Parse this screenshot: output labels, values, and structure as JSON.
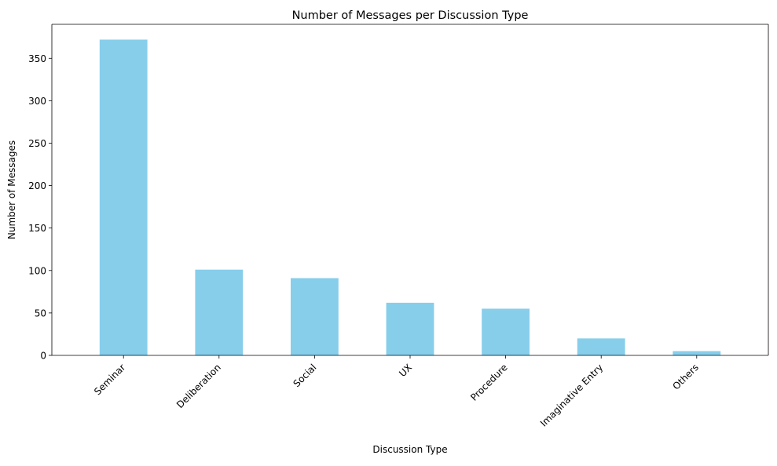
{
  "chart_data": {
    "type": "bar",
    "title": "Number of Messages per Discussion Type",
    "xlabel": "Discussion Type",
    "ylabel": "Number of Messages",
    "categories": [
      "Seminar",
      "Deliberation",
      "Social",
      "UX",
      "Procedure",
      "Imaginative Entry",
      "Others"
    ],
    "values": [
      372,
      101,
      91,
      62,
      55,
      20,
      5
    ],
    "ylim": [
      0,
      390
    ],
    "yticks": [
      0,
      50,
      100,
      150,
      200,
      250,
      300,
      350
    ],
    "bar_color": "#87CEEB",
    "grid": false,
    "legend": "none"
  }
}
